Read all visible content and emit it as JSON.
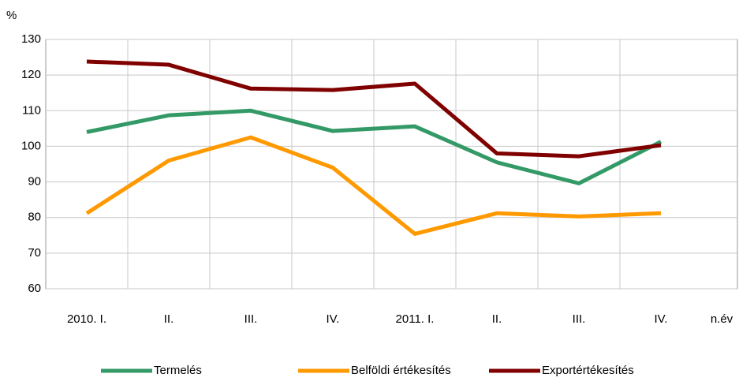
{
  "chart_data": {
    "type": "line",
    "y_label": "%",
    "x_label": "n.év",
    "categories": [
      "2010. I.",
      "II.",
      "III.",
      "IV.",
      "2011. I.",
      "II.",
      "III.",
      "IV."
    ],
    "series": [
      {
        "name": "Termelés",
        "color": "#339966",
        "values": [
          104,
          108.7,
          110,
          104.3,
          105.6,
          95.5,
          89.6,
          101.3
        ]
      },
      {
        "name": "Belföldi értékesítés",
        "color": "#ff9900",
        "values": [
          81.2,
          96,
          102.5,
          94,
          75.4,
          81.2,
          80.3,
          81.2
        ]
      },
      {
        "name": "Exportértékesítés",
        "color": "#800000",
        "values": [
          123.8,
          122.9,
          116.2,
          115.8,
          117.6,
          98,
          97.2,
          100.3
        ]
      }
    ],
    "ylim": [
      60,
      130
    ],
    "yticks": [
      60,
      70,
      80,
      90,
      100,
      110,
      120,
      130
    ],
    "grid": true,
    "legend": "bottom"
  }
}
